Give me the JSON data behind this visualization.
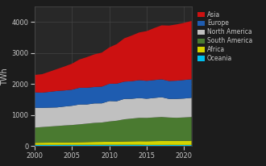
{
  "years": [
    2000,
    2001,
    2002,
    2003,
    2004,
    2005,
    2006,
    2007,
    2008,
    2009,
    2010,
    2011,
    2012,
    2013,
    2014,
    2015,
    2016,
    2017,
    2018,
    2019,
    2020,
    2021
  ],
  "oceania": [
    38,
    39,
    39,
    39,
    40,
    40,
    40,
    41,
    41,
    41,
    42,
    42,
    43,
    43,
    43,
    37,
    38,
    38,
    39,
    38,
    37,
    37
  ],
  "africa": [
    68,
    70,
    72,
    74,
    76,
    80,
    84,
    88,
    93,
    95,
    98,
    102,
    106,
    110,
    114,
    118,
    122,
    126,
    128,
    130,
    133,
    136
  ],
  "south_america": [
    490,
    505,
    520,
    535,
    550,
    560,
    578,
    596,
    615,
    625,
    655,
    675,
    715,
    735,
    755,
    755,
    765,
    775,
    755,
    745,
    755,
    765
  ],
  "north_america": [
    640,
    620,
    610,
    600,
    610,
    620,
    640,
    618,
    628,
    618,
    658,
    628,
    658,
    638,
    638,
    618,
    628,
    638,
    600,
    610,
    610,
    620
  ],
  "europe": [
    500,
    490,
    510,
    530,
    520,
    520,
    540,
    540,
    530,
    540,
    558,
    568,
    558,
    568,
    578,
    578,
    578,
    578,
    578,
    588,
    598,
    598
  ],
  "asia": [
    560,
    596,
    651,
    708,
    773,
    838,
    913,
    988,
    1053,
    1098,
    1173,
    1277,
    1397,
    1473,
    1539,
    1604,
    1677,
    1742,
    1789,
    1816,
    1843,
    1882
  ],
  "colors": {
    "oceania": "#00bfee",
    "africa": "#d4d400",
    "south_america": "#4a7a30",
    "north_america": "#c0c0c0",
    "europe": "#1e5cb0",
    "asia": "#cc1111"
  },
  "labels": {
    "asia": "Asia",
    "europe": "Europe",
    "north_america": "North America",
    "south_america": "South America",
    "africa": "Africa",
    "oceania": "Oceania"
  },
  "ylabel": "TWh",
  "ylim": [
    0,
    4500
  ],
  "yticks": [
    0,
    1000,
    2000,
    3000,
    4000
  ],
  "bg_color": "#1c1c1c",
  "plot_bg_color": "#282828",
  "grid_color": "#4a4a4a",
  "text_color": "#c8c8c8"
}
